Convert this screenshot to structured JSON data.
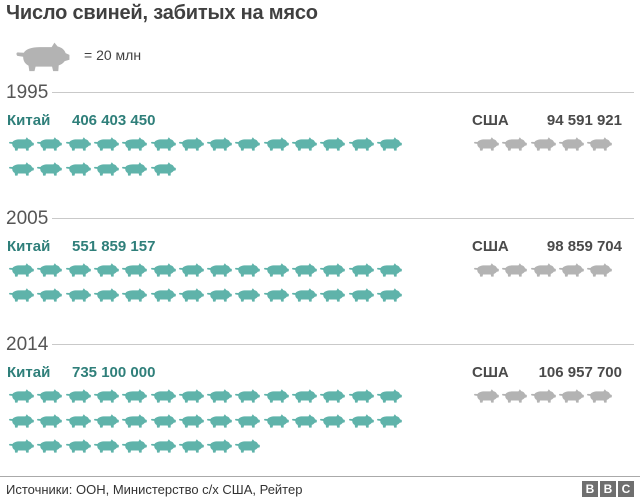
{
  "title": "Число свиней, забитых на мясо",
  "legend": {
    "icon": "pig-icon",
    "text": "= 20 млн"
  },
  "colors": {
    "china": "#5fb3aa",
    "usa": "#b3b3b3",
    "china_text": "#2f7f7a"
  },
  "chart_data": {
    "type": "pictograph",
    "unit_per_icon": 20000000,
    "series": [
      {
        "name": "Китай",
        "values": [
          406403450,
          551859157,
          735100000
        ],
        "labels": [
          "406 403 450",
          "551 859 157",
          "735 100 000"
        ],
        "icons": [
          20,
          28,
          37
        ]
      },
      {
        "name": "США",
        "values": [
          94591921,
          98859704,
          106957700
        ],
        "labels": [
          "94 591 921",
          "98 859 704",
          "106 957 700"
        ],
        "icons": [
          5,
          5,
          5
        ]
      }
    ],
    "categories": [
      "1995",
      "2005",
      "2014"
    ]
  },
  "source": "Источники: ООН, Министерство с/х США, Рейтер",
  "logo": [
    "B",
    "B",
    "C"
  ]
}
